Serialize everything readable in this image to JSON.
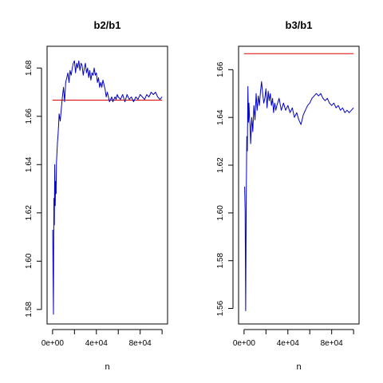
{
  "chart_data": [
    {
      "type": "line",
      "title": "b2/b1",
      "xlabel": "n",
      "ylabel": "",
      "xlim": [
        -5000,
        105000
      ],
      "ylim": [
        1.574,
        1.689
      ],
      "x_ticks": [
        0,
        40000,
        80000
      ],
      "x_tick_labels": [
        "0e+00",
        "4e+04",
        "8e+04"
      ],
      "y_ticks": [
        1.58,
        1.6,
        1.62,
        1.64,
        1.66,
        1.68
      ],
      "y_tick_labels": [
        "1.58",
        "1.60",
        "1.62",
        "1.64",
        "1.66",
        "1.68"
      ],
      "reference_line": {
        "y": 1.6667,
        "color": "#dd0000"
      },
      "line_color": "#0000cc",
      "series": [
        {
          "x": [
            200,
            500,
            800,
            1000,
            1300,
            1600,
            2000,
            2400,
            2800,
            3200,
            3600,
            4000,
            4500,
            5000,
            5500,
            6000,
            7000,
            8000,
            9000,
            10000,
            11000,
            12000,
            13000,
            14000,
            15000,
            16000,
            17000,
            18000,
            19000,
            20000,
            21000,
            22000,
            23000,
            24000,
            25000,
            26000,
            27000,
            28000,
            29000,
            30000,
            31000,
            32000,
            33000,
            34000,
            35000,
            36000,
            37000,
            38000,
            39000,
            40000,
            41000,
            42000,
            43000,
            44000,
            45000,
            46000,
            47000,
            48000,
            49000,
            50000,
            51000,
            52000,
            53000,
            54000,
            55000,
            56000,
            57000,
            58000,
            59000,
            60000,
            62000,
            64000,
            66000,
            68000,
            70000,
            72000,
            74000,
            76000,
            78000,
            80000,
            82000,
            84000,
            86000,
            88000,
            90000,
            92000,
            94000,
            96000,
            98000,
            100000
          ],
          "y": [
            1.613,
            1.596,
            1.578,
            1.601,
            1.626,
            1.615,
            1.64,
            1.623,
            1.633,
            1.628,
            1.641,
            1.645,
            1.649,
            1.652,
            1.656,
            1.661,
            1.658,
            1.663,
            1.668,
            1.672,
            1.666,
            1.674,
            1.676,
            1.678,
            1.674,
            1.679,
            1.677,
            1.68,
            1.682,
            1.683,
            1.678,
            1.682,
            1.68,
            1.683,
            1.679,
            1.682,
            1.681,
            1.677,
            1.68,
            1.682,
            1.678,
            1.68,
            1.676,
            1.679,
            1.675,
            1.678,
            1.677,
            1.68,
            1.677,
            1.678,
            1.674,
            1.676,
            1.672,
            1.674,
            1.672,
            1.675,
            1.673,
            1.671,
            1.668,
            1.67,
            1.668,
            1.666,
            1.667,
            1.668,
            1.666,
            1.667,
            1.668,
            1.667,
            1.669,
            1.668,
            1.667,
            1.669,
            1.666,
            1.669,
            1.667,
            1.668,
            1.666,
            1.668,
            1.667,
            1.669,
            1.668,
            1.667,
            1.669,
            1.668,
            1.67,
            1.669,
            1.67,
            1.668,
            1.667,
            1.668
          ]
        }
      ]
    },
    {
      "type": "line",
      "title": "b3/b1",
      "xlabel": "n",
      "ylabel": "",
      "xlim": [
        -5000,
        105000
      ],
      "ylim": [
        1.5535,
        1.6698
      ],
      "x_ticks": [
        0,
        40000,
        80000
      ],
      "x_tick_labels": [
        "0e+00",
        "4e+04",
        "8e+04"
      ],
      "y_ticks": [
        1.56,
        1.58,
        1.6,
        1.62,
        1.64,
        1.66
      ],
      "y_tick_labels": [
        "1.56",
        "1.58",
        "1.60",
        "1.62",
        "1.64",
        "1.66"
      ],
      "reference_line": {
        "y": 1.6667,
        "color": "#dd0000"
      },
      "line_color": "#0000cc",
      "series": [
        {
          "x": [
            500,
            1000,
            1500,
            2000,
            2500,
            3000,
            3500,
            4000,
            4500,
            5000,
            5500,
            6000,
            7000,
            8000,
            9000,
            10000,
            11000,
            12000,
            13000,
            14000,
            15000,
            16000,
            17000,
            18000,
            19000,
            20000,
            21000,
            22000,
            23000,
            24000,
            25000,
            26000,
            27000,
            28000,
            29000,
            30000,
            32000,
            34000,
            36000,
            38000,
            40000,
            42000,
            44000,
            46000,
            48000,
            50000,
            52000,
            54000,
            56000,
            58000,
            60000,
            62000,
            64000,
            66000,
            68000,
            70000,
            72000,
            74000,
            76000,
            78000,
            80000,
            82000,
            84000,
            86000,
            88000,
            90000,
            92000,
            94000,
            96000,
            98000,
            100000
          ],
          "y": [
            1.611,
            1.601,
            1.559,
            1.605,
            1.632,
            1.626,
            1.653,
            1.638,
            1.646,
            1.64,
            1.637,
            1.629,
            1.64,
            1.634,
            1.645,
            1.639,
            1.65,
            1.643,
            1.649,
            1.645,
            1.651,
            1.655,
            1.65,
            1.646,
            1.648,
            1.652,
            1.644,
            1.651,
            1.647,
            1.65,
            1.645,
            1.648,
            1.642,
            1.646,
            1.643,
            1.645,
            1.648,
            1.643,
            1.646,
            1.643,
            1.645,
            1.642,
            1.644,
            1.64,
            1.642,
            1.639,
            1.637,
            1.641,
            1.643,
            1.645,
            1.646,
            1.648,
            1.649,
            1.65,
            1.649,
            1.65,
            1.648,
            1.647,
            1.648,
            1.646,
            1.645,
            1.646,
            1.644,
            1.645,
            1.643,
            1.644,
            1.642,
            1.643,
            1.642,
            1.643,
            1.644
          ]
        }
      ]
    }
  ]
}
